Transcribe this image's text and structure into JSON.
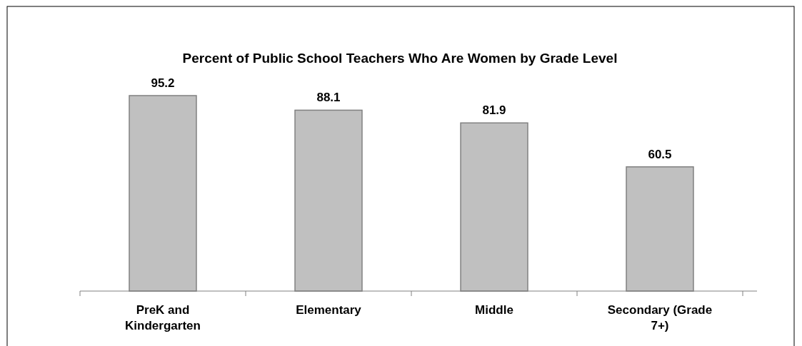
{
  "chart_data": {
    "type": "bar",
    "title": "Percent of Public School Teachers Who Are Women by Grade Level",
    "categories": [
      "PreK and Kindergarten",
      "Elementary",
      "Middle",
      "Secondary (Grade 7+)"
    ],
    "values": [
      95.2,
      88.1,
      81.9,
      60.5
    ],
    "color": "#c0c0c0",
    "data_labels": true
  }
}
